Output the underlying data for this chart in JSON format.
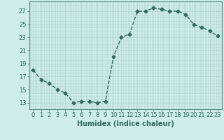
{
  "x": [
    0,
    1,
    2,
    3,
    4,
    5,
    6,
    7,
    8,
    9,
    10,
    11,
    12,
    13,
    14,
    15,
    16,
    17,
    18,
    19,
    20,
    21,
    22,
    23
  ],
  "y": [
    18.0,
    16.5,
    16.0,
    15.0,
    14.5,
    13.0,
    13.2,
    13.2,
    13.0,
    13.2,
    20.0,
    23.0,
    23.5,
    27.0,
    27.0,
    27.5,
    27.3,
    27.0,
    27.0,
    26.5,
    25.0,
    24.5,
    24.0,
    23.2
  ],
  "line_color": "#2e6b5e",
  "marker": "D",
  "markersize": 2.5,
  "linewidth": 1.0,
  "linestyle": "--",
  "bg_color": "#cdecea",
  "grid_color_major": "#b5d5d3",
  "grid_color_minor": "#d4ecea",
  "xlabel": "Humidex (Indice chaleur)",
  "xlabel_fontsize": 7,
  "ylabel_ticks": [
    13,
    15,
    17,
    19,
    21,
    23,
    25,
    27
  ],
  "xtick_labels": [
    "0",
    "1",
    "2",
    "3",
    "4",
    "5",
    "6",
    "7",
    "8",
    "9",
    "10",
    "11",
    "12",
    "13",
    "14",
    "15",
    "16",
    "17",
    "18",
    "19",
    "20",
    "21",
    "22",
    "23"
  ],
  "ylim": [
    12.0,
    28.5
  ],
  "xlim": [
    -0.5,
    23.5
  ],
  "tick_fontsize": 6,
  "spine_color": "#5a8a80"
}
